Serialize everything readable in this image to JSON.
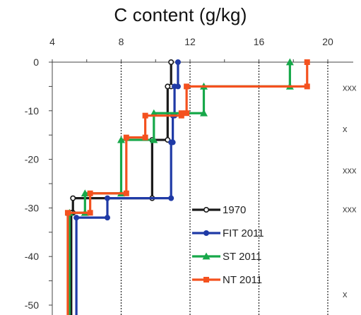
{
  "chart_data": {
    "type": "line",
    "title": "C content (g/kg)",
    "xlim": [
      4,
      20
    ],
    "ylim": [
      -55,
      0
    ],
    "x_ticks": [
      "4",
      "8",
      "12",
      "16",
      "20"
    ],
    "y_ticks": [
      "0",
      "-10",
      "-20",
      "-30",
      "-40",
      "-50"
    ],
    "x_tick_values": [
      4,
      8,
      12,
      16,
      20
    ],
    "y_tick_values": [
      0,
      -10,
      -20,
      -30,
      -40,
      -50
    ],
    "gridlines_x": [
      8,
      12,
      16,
      20
    ],
    "legend": {
      "placement": "lower-center"
    },
    "series": [
      {
        "name": "1970",
        "color": "#1a1a1a",
        "marker": "circle-open",
        "x": [
          10.9,
          10.9,
          10.7,
          10.7,
          9.8,
          9.8,
          5.2,
          5.2,
          5.1,
          5.1
        ],
        "y": [
          0,
          -5,
          -5,
          -16,
          -16,
          -28,
          -28,
          -31,
          -31,
          -55
        ]
      },
      {
        "name": "FIT 2011",
        "color": "#1f3aa6",
        "marker": "circle",
        "x": [
          11.3,
          11.3,
          11.1,
          11.1,
          11.0,
          11.0,
          10.9,
          10.9,
          7.2,
          7.2,
          5.4,
          5.4
        ],
        "y": [
          0,
          -5,
          -5,
          -11,
          -11,
          -16.5,
          -16.5,
          -28,
          -28,
          -32,
          -32,
          -55
        ]
      },
      {
        "name": "ST 2011",
        "color": "#17a84a",
        "marker": "triangle",
        "x": [
          17.8,
          17.8,
          12.8,
          12.8,
          9.9,
          9.9,
          8.0,
          8.0,
          5.9,
          5.9,
          5.0,
          5.0
        ],
        "y": [
          0,
          -5,
          -5,
          -10.5,
          -10.5,
          -16,
          -16,
          -27,
          -27,
          -31,
          -31,
          -55
        ]
      },
      {
        "name": "NT 2011",
        "color": "#f4511e",
        "marker": "square",
        "x": [
          18.8,
          18.8,
          11.8,
          11.8,
          11.5,
          11.5,
          9.4,
          9.4,
          8.3,
          8.3,
          6.2,
          6.2,
          4.9,
          4.9
        ],
        "y": [
          0,
          -5,
          -5,
          -10.5,
          -10.5,
          -11,
          -11,
          -15.5,
          -15.5,
          -27,
          -27,
          -31,
          -31,
          -55
        ]
      }
    ],
    "annotations": [
      {
        "text": "xxx",
        "y": -5
      },
      {
        "text": "x",
        "y": -13.5
      },
      {
        "text": "xxx",
        "y": -22
      },
      {
        "text": "xxx",
        "y": -30
      },
      {
        "text": "x",
        "y": -47.5
      }
    ]
  }
}
